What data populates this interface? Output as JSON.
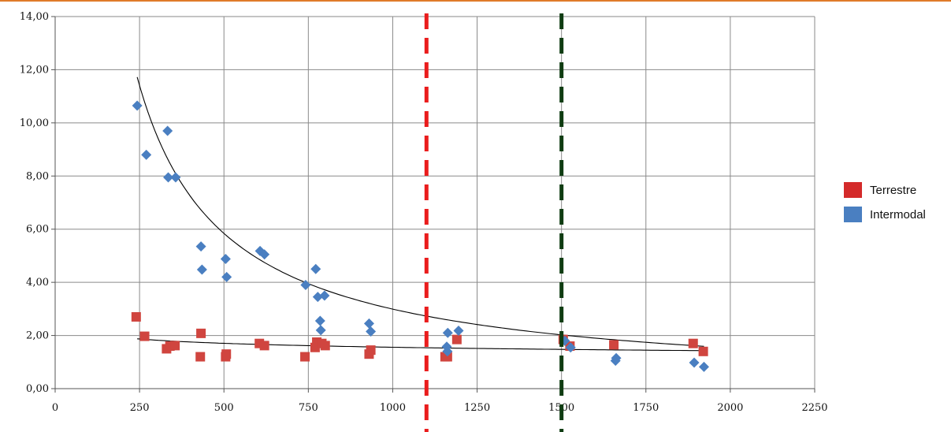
{
  "chart_data": {
    "type": "scatter",
    "title": "",
    "xlabel": "",
    "ylabel": "",
    "xlim": [
      0,
      2250
    ],
    "ylim": [
      0,
      14
    ],
    "x_ticks": [
      "0",
      "250",
      "500",
      "750",
      "1000",
      "1250",
      "1500",
      "1750",
      "2000",
      "2250"
    ],
    "x_tick_values": [
      0,
      250,
      500,
      750,
      1000,
      1250,
      1500,
      1750,
      2000,
      2250
    ],
    "y_ticks": [
      "0,00",
      "2,00",
      "4,00",
      "6,00",
      "8,00",
      "10,00",
      "12,00",
      "14,00"
    ],
    "y_tick_values": [
      0,
      2,
      4,
      6,
      8,
      10,
      12,
      14
    ],
    "grid": true,
    "legend_position": "right",
    "series": [
      {
        "name": "Terrestre",
        "color": "#d0453f",
        "legend_color": "#d42a2a",
        "marker": "square",
        "points": [
          [
            240,
            2.7
          ],
          [
            265,
            1.97
          ],
          [
            330,
            1.5
          ],
          [
            340,
            1.6
          ],
          [
            355,
            1.62
          ],
          [
            430,
            1.2
          ],
          [
            432,
            2.08
          ],
          [
            505,
            1.2
          ],
          [
            507,
            1.3
          ],
          [
            605,
            1.7
          ],
          [
            620,
            1.62
          ],
          [
            740,
            1.2
          ],
          [
            770,
            1.55
          ],
          [
            775,
            1.75
          ],
          [
            790,
            1.7
          ],
          [
            800,
            1.62
          ],
          [
            930,
            1.3
          ],
          [
            935,
            1.45
          ],
          [
            1155,
            1.2
          ],
          [
            1162,
            1.2
          ],
          [
            1190,
            1.85
          ],
          [
            1505,
            1.85
          ],
          [
            1525,
            1.6
          ],
          [
            1655,
            1.65
          ],
          [
            1890,
            1.7
          ],
          [
            1920,
            1.4
          ]
        ]
      },
      {
        "name": "Intermodal",
        "color": "#4a7fc1",
        "legend_color": "#4a7fc1",
        "marker": "diamond",
        "points": [
          [
            243,
            10.65
          ],
          [
            270,
            8.8
          ],
          [
            333,
            9.7
          ],
          [
            335,
            7.95
          ],
          [
            357,
            7.95
          ],
          [
            432,
            5.35
          ],
          [
            435,
            4.48
          ],
          [
            505,
            4.88
          ],
          [
            508,
            4.2
          ],
          [
            607,
            5.18
          ],
          [
            620,
            5.05
          ],
          [
            742,
            3.9
          ],
          [
            772,
            4.5
          ],
          [
            778,
            3.45
          ],
          [
            785,
            2.55
          ],
          [
            787,
            2.2
          ],
          [
            798,
            3.5
          ],
          [
            930,
            2.45
          ],
          [
            935,
            2.15
          ],
          [
            1160,
            1.58
          ],
          [
            1162,
            1.4
          ],
          [
            1163,
            2.1
          ],
          [
            1195,
            2.18
          ],
          [
            1510,
            1.8
          ],
          [
            1527,
            1.55
          ],
          [
            1660,
            1.05
          ],
          [
            1662,
            1.15
          ],
          [
            1893,
            0.98
          ],
          [
            1922,
            0.82
          ]
        ]
      }
    ],
    "trendlines": [
      {
        "series": "Intermodal",
        "type": "power",
        "a": 2350,
        "b": -0.965,
        "x_range": [
          243,
          1922
        ],
        "color": "#000000"
      },
      {
        "series": "Terrestre",
        "type": "power",
        "a": 3.85,
        "b": -0.131,
        "x_range": [
          243,
          1922
        ],
        "color": "#000000"
      }
    ],
    "reference_lines": [
      {
        "x": 1100,
        "color": "#ea1c1c",
        "style": "dashed"
      },
      {
        "x": 1500,
        "color": "#0f3c12",
        "style": "dashed"
      }
    ]
  }
}
